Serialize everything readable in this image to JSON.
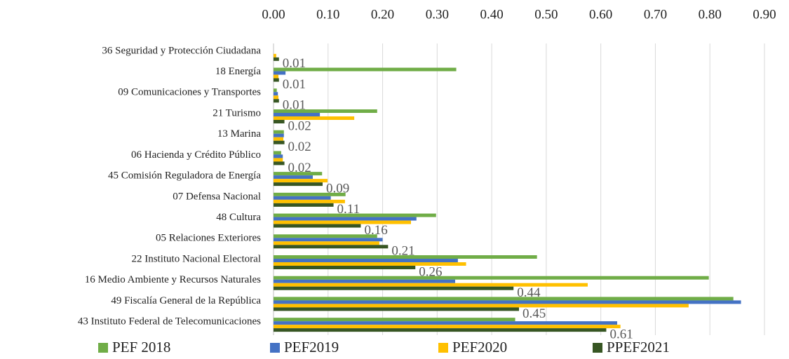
{
  "chart_data": {
    "type": "hbar",
    "categories": [
      "36 Seguridad y Protección Ciudadana",
      "18 Energía",
      "09 Comunicaciones y Transportes",
      "21 Turismo",
      "13 Marina",
      "06 Hacienda y Crédito Público",
      "45 Comisión Reguladora de Energía",
      "07 Defensa Nacional",
      "48 Cultura",
      "05 Relaciones Exteriores",
      "22 Instituto Nacional Electoral",
      "16 Medio Ambiente y Recursos Naturales",
      "49 Fiscalía General de la República",
      "43 Instituto Federal de Telecomunicaciones"
    ],
    "series": [
      {
        "name": "PEF 2018",
        "color": "#70ad47",
        "values": [
          0,
          0.335,
          0.006,
          0.19,
          0.019,
          0.014,
          0.089,
          0.132,
          0.298,
          0.19,
          0.483,
          0.798,
          0.843,
          0.443
        ]
      },
      {
        "name": "PEF2019",
        "color": "#4472c4",
        "values": [
          0,
          0.022,
          0.008,
          0.085,
          0.019,
          0.017,
          0.072,
          0.105,
          0.262,
          0.2,
          0.338,
          0.333,
          0.857,
          0.63
        ]
      },
      {
        "name": "PEF2020",
        "color": "#ffc000",
        "values": [
          0.005,
          0.009,
          0.009,
          0.148,
          0.018,
          0.017,
          0.099,
          0.131,
          0.252,
          0.194,
          0.353,
          0.576,
          0.761,
          0.636
        ]
      },
      {
        "name": "PPEF2021",
        "color": "#375623",
        "values": [
          0.01,
          0.01,
          0.01,
          0.02,
          0.02,
          0.02,
          0.09,
          0.11,
          0.16,
          0.21,
          0.26,
          0.44,
          0.45,
          0.61
        ]
      }
    ],
    "data_labels_series": 3,
    "xlim": [
      0,
      0.9
    ],
    "xticks": [
      {
        "value": 0,
        "label": "0.00"
      },
      {
        "value": 0.1,
        "label": "0.10"
      },
      {
        "value": 0.2,
        "label": "0.20"
      },
      {
        "value": 0.3,
        "label": "0.30"
      },
      {
        "value": 0.4,
        "label": "0.40"
      },
      {
        "value": 0.5,
        "label": "0.50"
      },
      {
        "value": 0.6,
        "label": "0.60"
      },
      {
        "value": 0.7,
        "label": "0.70"
      },
      {
        "value": 0.8,
        "label": "0.80"
      },
      {
        "value": 0.9,
        "label": "0.90"
      }
    ],
    "grid": true,
    "legend": "bottom"
  }
}
